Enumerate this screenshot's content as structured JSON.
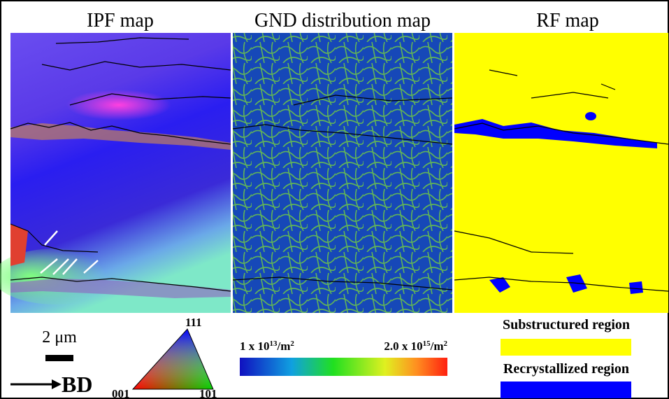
{
  "panels": [
    {
      "title": "IPF map"
    },
    {
      "title": "GND distribution map"
    },
    {
      "title": "RF map"
    }
  ],
  "scale_bar": {
    "label": "2 μm"
  },
  "direction": {
    "label": "BD"
  },
  "ipf_triangle": {
    "top": "111",
    "left": "001",
    "right": "101"
  },
  "colorbar": {
    "min_label": {
      "base": "1 x 10",
      "exp": "13",
      "unit": "/m",
      "unit_exp": "2"
    },
    "max_label": {
      "base": "2.0 x 10",
      "exp": "15",
      "unit": "/m",
      "unit_exp": "2"
    }
  },
  "legend": [
    {
      "label": "Substructured region",
      "color": "#ffff00"
    },
    {
      "label": "Recrystallized region",
      "color": "#0000ff"
    }
  ]
}
